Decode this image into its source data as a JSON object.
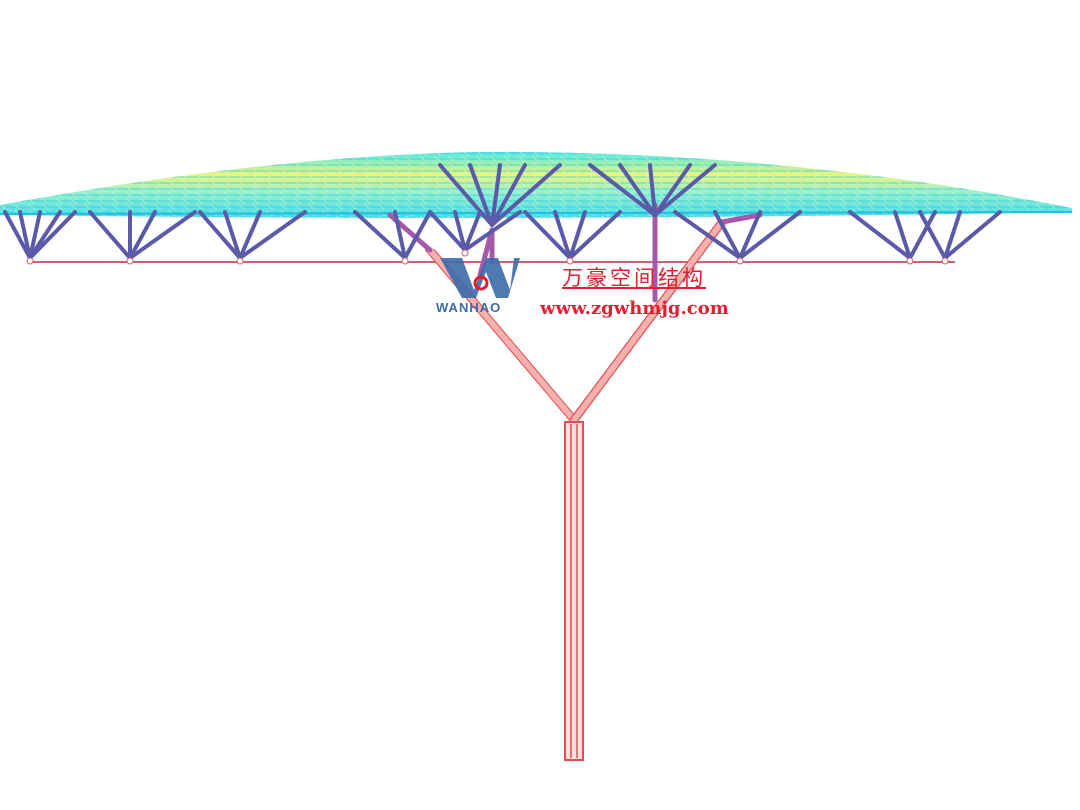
{
  "watermark": {
    "company_cn": "万豪空间结构",
    "url": "www.zgwhmjg.com",
    "logo_text": "WANHAO"
  },
  "colors": {
    "canopy_cyan": "#3de6e6",
    "canopy_yellow": "#e9f56a",
    "strut": "#5a5aa8",
    "branch_purple": "#a45aa8",
    "column_red": "#e05050",
    "baseline": "#d06070",
    "watermark_red": "#e02030",
    "logo_blue": "#3c6aa8"
  }
}
